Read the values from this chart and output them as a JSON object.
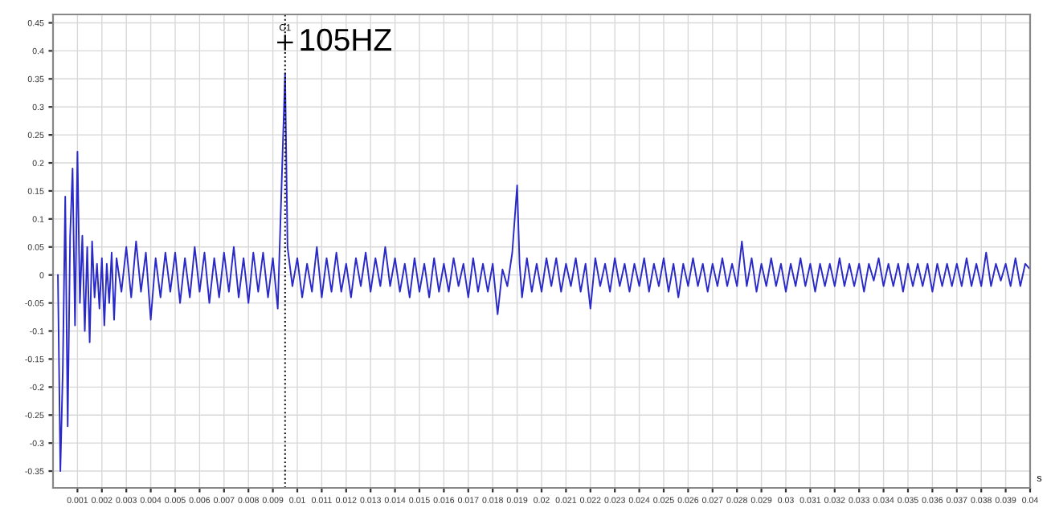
{
  "chart_data": {
    "type": "line",
    "xlabel": "s",
    "xlim": [
      0,
      0.04
    ],
    "ylim": [
      -0.38,
      0.465
    ],
    "xticks": [
      0.001,
      0.002,
      0.003,
      0.004,
      0.005,
      0.006,
      0.007,
      0.008,
      0.009,
      0.01,
      0.011,
      0.012,
      0.013,
      0.014,
      0.015,
      0.016,
      0.017,
      0.018,
      0.019,
      0.02,
      0.021,
      0.022,
      0.023,
      0.024,
      0.025,
      0.026,
      0.027,
      0.028,
      0.029,
      0.03,
      0.031,
      0.032,
      0.033,
      0.034,
      0.035,
      0.036,
      0.037,
      0.038,
      0.039,
      0.04
    ],
    "yticks": [
      -0.35,
      -0.3,
      -0.25,
      -0.2,
      -0.15,
      -0.1,
      -0.05,
      0,
      0.05,
      0.1,
      0.15,
      0.2,
      0.25,
      0.3,
      0.35,
      0.4,
      0.45
    ],
    "grid": true,
    "marker": "none",
    "line_style": "solid",
    "ref_lines": [
      {
        "axis": "x",
        "value": 0.0095,
        "label": "C1",
        "line_style": "dotted",
        "color": "#000000"
      }
    ],
    "annotations": [
      {
        "text": "105HZ",
        "x": 0.0095,
        "y": 0.415
      }
    ],
    "series": [
      {
        "color": "#2a2ac8",
        "x": [
          0.0002,
          0.0003,
          0.0004,
          0.0005,
          0.0006,
          0.0007,
          0.0008,
          0.0009,
          0.001,
          0.0011,
          0.0012,
          0.0013,
          0.0014,
          0.0015,
          0.0016,
          0.0017,
          0.0018,
          0.0019,
          0.002,
          0.0021,
          0.0022,
          0.0023,
          0.0024,
          0.0025,
          0.0026,
          0.0028,
          0.003,
          0.0032,
          0.0034,
          0.0036,
          0.0038,
          0.004,
          0.0042,
          0.0044,
          0.0046,
          0.0048,
          0.005,
          0.0052,
          0.0054,
          0.0056,
          0.0058,
          0.006,
          0.0062,
          0.0064,
          0.0066,
          0.0068,
          0.007,
          0.0072,
          0.0074,
          0.0076,
          0.0078,
          0.008,
          0.0082,
          0.0084,
          0.0086,
          0.0088,
          0.009,
          0.0092,
          0.0093,
          0.0095,
          0.0096,
          0.0098,
          0.01,
          0.0102,
          0.0104,
          0.0106,
          0.0108,
          0.011,
          0.0112,
          0.0114,
          0.0116,
          0.0118,
          0.012,
          0.0122,
          0.0124,
          0.0126,
          0.0128,
          0.013,
          0.0132,
          0.0134,
          0.0136,
          0.0138,
          0.014,
          0.0142,
          0.0144,
          0.0146,
          0.0148,
          0.015,
          0.0152,
          0.0154,
          0.0156,
          0.0158,
          0.016,
          0.0162,
          0.0164,
          0.0166,
          0.0168,
          0.017,
          0.0172,
          0.0174,
          0.0176,
          0.0178,
          0.018,
          0.0182,
          0.0184,
          0.0186,
          0.0188,
          0.019,
          0.0191,
          0.0192,
          0.0194,
          0.0196,
          0.0198,
          0.02,
          0.0202,
          0.0204,
          0.0206,
          0.0208,
          0.021,
          0.0212,
          0.0214,
          0.0216,
          0.0218,
          0.022,
          0.0222,
          0.0224,
          0.0226,
          0.0228,
          0.023,
          0.0232,
          0.0234,
          0.0236,
          0.0238,
          0.024,
          0.0242,
          0.0244,
          0.0246,
          0.0248,
          0.025,
          0.0252,
          0.0254,
          0.0256,
          0.0258,
          0.026,
          0.0262,
          0.0264,
          0.0266,
          0.0268,
          0.027,
          0.0272,
          0.0274,
          0.0276,
          0.0278,
          0.028,
          0.0282,
          0.0284,
          0.0286,
          0.0288,
          0.029,
          0.0292,
          0.0294,
          0.0296,
          0.0298,
          0.03,
          0.0302,
          0.0304,
          0.0306,
          0.0308,
          0.031,
          0.0312,
          0.0314,
          0.0316,
          0.0318,
          0.032,
          0.0322,
          0.0324,
          0.0326,
          0.0328,
          0.033,
          0.0332,
          0.0334,
          0.0336,
          0.0338,
          0.034,
          0.0342,
          0.0344,
          0.0346,
          0.0348,
          0.035,
          0.0352,
          0.0354,
          0.0356,
          0.0358,
          0.036,
          0.0362,
          0.0364,
          0.0366,
          0.0368,
          0.037,
          0.0372,
          0.0374,
          0.0376,
          0.0378,
          0.038,
          0.0382,
          0.0384,
          0.0386,
          0.0388,
          0.039,
          0.0392,
          0.0394,
          0.0396,
          0.0398,
          0.04
        ],
        "values": [
          0,
          -0.35,
          -0.17,
          0.14,
          -0.27,
          0.07,
          0.19,
          -0.09,
          0.22,
          -0.05,
          0.07,
          -0.1,
          0.05,
          -0.12,
          0.06,
          -0.04,
          0.02,
          -0.06,
          0.03,
          -0.09,
          0.02,
          -0.05,
          0.04,
          -0.08,
          0.03,
          -0.03,
          0.05,
          -0.04,
          0.06,
          -0.03,
          0.04,
          -0.08,
          0.03,
          -0.04,
          0.04,
          -0.03,
          0.04,
          -0.05,
          0.03,
          -0.04,
          0.05,
          -0.03,
          0.04,
          -0.05,
          0.03,
          -0.04,
          0.04,
          -0.03,
          0.05,
          -0.04,
          0.03,
          -0.05,
          0.04,
          -0.03,
          0.04,
          -0.04,
          0.03,
          -0.06,
          0.08,
          0.36,
          0.05,
          -0.02,
          0.03,
          -0.04,
          0.02,
          -0.03,
          0.05,
          -0.04,
          0.03,
          -0.03,
          0.04,
          -0.03,
          0.02,
          -0.04,
          0.03,
          -0.02,
          0.04,
          -0.03,
          0.03,
          -0.02,
          0.05,
          -0.02,
          0.03,
          -0.03,
          0.02,
          -0.04,
          0.03,
          -0.03,
          0.02,
          -0.04,
          0.03,
          -0.03,
          0.02,
          -0.03,
          0.03,
          -0.02,
          0.02,
          -0.04,
          0.03,
          -0.03,
          0.02,
          -0.03,
          0.02,
          -0.07,
          0.01,
          -0.02,
          0.04,
          0.16,
          0.02,
          -0.04,
          0.03,
          -0.03,
          0.02,
          -0.03,
          0.03,
          -0.02,
          0.03,
          -0.03,
          0.02,
          -0.02,
          0.03,
          -0.03,
          0.02,
          -0.06,
          0.03,
          -0.02,
          0.02,
          -0.03,
          0.03,
          -0.02,
          0.02,
          -0.03,
          0.02,
          -0.02,
          0.03,
          -0.03,
          0.02,
          -0.02,
          0.03,
          -0.03,
          0.02,
          -0.04,
          0.02,
          -0.02,
          0.03,
          -0.02,
          0.02,
          -0.03,
          0.02,
          -0.02,
          0.03,
          -0.02,
          0.02,
          -0.02,
          0.06,
          -0.02,
          0.03,
          -0.03,
          0.02,
          -0.02,
          0.03,
          -0.02,
          0.02,
          -0.03,
          0.02,
          -0.02,
          0.03,
          -0.02,
          0.02,
          -0.03,
          0.02,
          -0.02,
          0.02,
          -0.02,
          0.03,
          -0.02,
          0.02,
          -0.02,
          0.02,
          -0.03,
          0.02,
          -0.01,
          0.03,
          -0.02,
          0.02,
          -0.02,
          0.02,
          -0.03,
          0.02,
          -0.02,
          0.02,
          -0.02,
          0.02,
          -0.03,
          0.02,
          -0.02,
          0.02,
          -0.02,
          0.02,
          -0.02,
          0.03,
          -0.02,
          0.02,
          -0.02,
          0.04,
          -0.02,
          0.02,
          -0.01,
          0.02,
          -0.02,
          0.03,
          -0.02,
          0.02,
          0.01
        ]
      }
    ]
  }
}
